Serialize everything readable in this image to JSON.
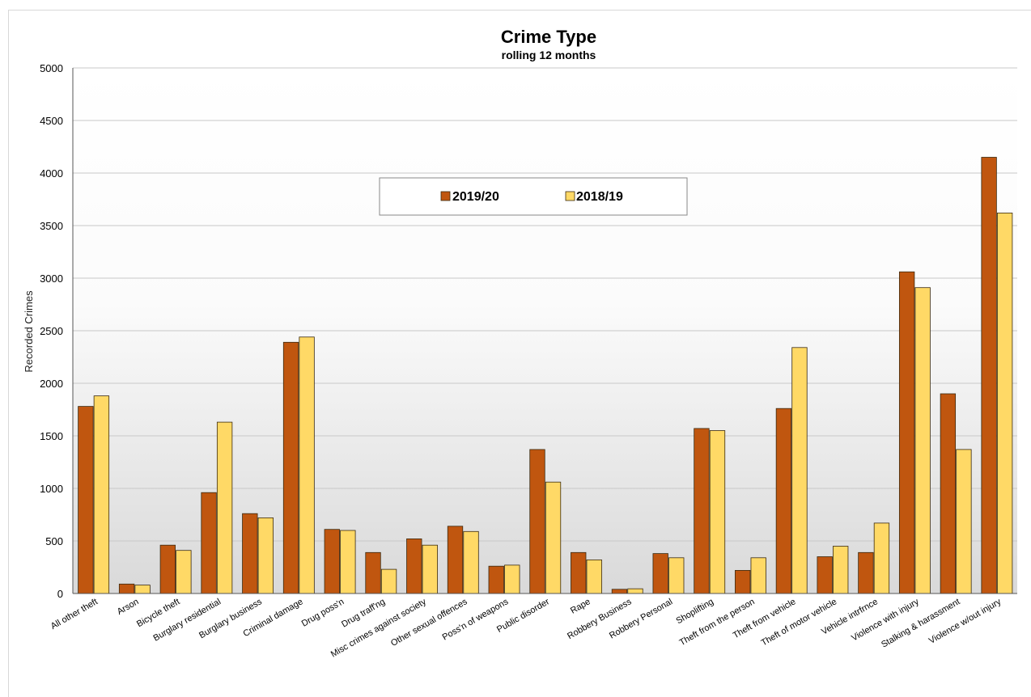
{
  "colors": {
    "series_2019": "#c0560f",
    "series_2018": "#ffd966",
    "bar_stroke": "#3a2a10",
    "grid": "#c8c8c8"
  },
  "chart_data": {
    "type": "bar",
    "title": "Crime Type",
    "subtitle": "rolling 12 months",
    "xlabel": "",
    "ylabel": "Recorded Crimes",
    "ylim": [
      0,
      5000
    ],
    "yticks": [
      0,
      500,
      1000,
      1500,
      2000,
      2500,
      3000,
      3500,
      4000,
      4500,
      5000
    ],
    "grid": true,
    "legend_position": "top-center",
    "categories": [
      "All other theft",
      "Arson",
      "Bicycle theft",
      "Burglary residential",
      "Burglary business",
      "Criminal damage",
      "Drug poss'n",
      "Drug traff'ng",
      "Misc crimes against society",
      "Other sexual offences",
      "Poss'n of weapons",
      "Public disorder",
      "Rape",
      "Robbery Business",
      "Robbery Personal",
      "Shoplifting",
      "Theft from the person",
      "Theft from vehicle",
      "Theft of motor vehicle",
      "Vehicle intrfrnce",
      "Violence with injury",
      "Stalking & harassment",
      "Violence w/out injury"
    ],
    "series": [
      {
        "name": "2019/20",
        "values": [
          1780,
          90,
          460,
          960,
          760,
          2390,
          610,
          390,
          520,
          640,
          260,
          1370,
          390,
          40,
          380,
          1570,
          220,
          1760,
          350,
          390,
          3060,
          1900,
          4150
        ]
      },
      {
        "name": "2018/19",
        "values": [
          1880,
          80,
          410,
          1630,
          720,
          2440,
          600,
          230,
          460,
          590,
          270,
          1060,
          320,
          45,
          340,
          1550,
          340,
          2340,
          450,
          670,
          2910,
          1370,
          3620
        ]
      }
    ]
  }
}
